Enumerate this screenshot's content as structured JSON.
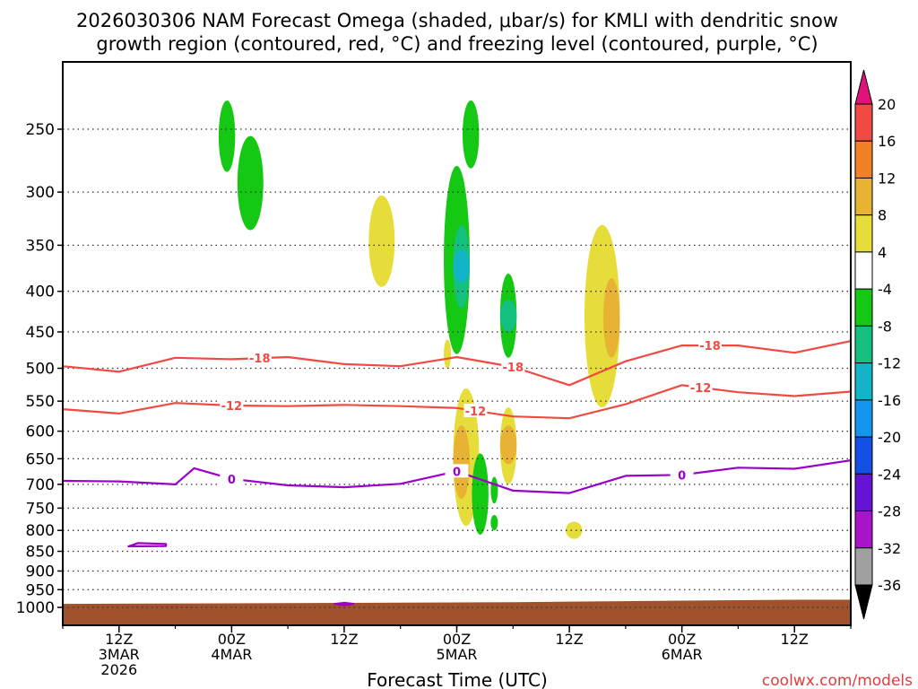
{
  "title_line1": "2026030306 NAM Forecast Omega (shaded, μbar/s) for KMLI with dendritic snow",
  "title_line2": "growth region (contoured, red, °C) and freezing level (contoured, purple, °C)",
  "xlabel": "Forecast Time (UTC)",
  "credit": "coolwx.com/models",
  "colors": {
    "frame": "#000000",
    "grid": "#333333",
    "red_contour": "#f04a43",
    "purple_contour": "#9a00c8",
    "ground": "#a0522d"
  },
  "chart_data": {
    "type": "heatmap",
    "y_axis": {
      "quantity": "pressure (hPa)",
      "scale": "log",
      "inverted": true,
      "range": [
        200,
        1050
      ],
      "ticks": [
        250,
        300,
        350,
        400,
        450,
        500,
        550,
        600,
        650,
        700,
        750,
        800,
        850,
        900,
        950,
        1000
      ]
    },
    "x_axis": {
      "quantity": "forecast time (UTC)",
      "range": [
        "2026-03-03 06Z",
        "2026-03-06 18Z"
      ],
      "ticks": [
        {
          "time": "2026-03-03 12Z",
          "lines": [
            "12Z",
            "3MAR",
            "2026"
          ]
        },
        {
          "time": "2026-03-04 00Z",
          "lines": [
            "00Z",
            "4MAR"
          ]
        },
        {
          "time": "2026-03-04 12Z",
          "lines": [
            "12Z"
          ]
        },
        {
          "time": "2026-03-05 00Z",
          "lines": [
            "00Z",
            "5MAR"
          ]
        },
        {
          "time": "2026-03-05 12Z",
          "lines": [
            "12Z"
          ]
        },
        {
          "time": "2026-03-06 00Z",
          "lines": [
            "00Z",
            "6MAR"
          ]
        },
        {
          "time": "2026-03-06 12Z",
          "lines": [
            "12Z"
          ]
        }
      ]
    },
    "grid": true,
    "colorbar": {
      "placement": "right",
      "tick_labels": [
        "20",
        "16",
        "12",
        "8",
        "4",
        "-4",
        "-8",
        "-12",
        "-16",
        "-20",
        "-24",
        "-28",
        "-32",
        "-36"
      ],
      "bins": [
        {
          "range": [
            20,
            null
          ],
          "color": "#e0137a"
        },
        {
          "range": [
            16,
            20
          ],
          "color": "#f04a43"
        },
        {
          "range": [
            12,
            16
          ],
          "color": "#f08225"
        },
        {
          "range": [
            8,
            12
          ],
          "color": "#e8b235"
        },
        {
          "range": [
            4,
            8
          ],
          "color": "#e6dc3a"
        },
        {
          "range": [
            -4,
            4
          ],
          "color": "#ffffff"
        },
        {
          "range": [
            -8,
            -4
          ],
          "color": "#14c814"
        },
        {
          "range": [
            -12,
            -8
          ],
          "color": "#14c080"
        },
        {
          "range": [
            -16,
            -12
          ],
          "color": "#14b4c8"
        },
        {
          "range": [
            -20,
            -16
          ],
          "color": "#1496f0"
        },
        {
          "range": [
            -24,
            -20
          ],
          "color": "#1450e6"
        },
        {
          "range": [
            -28,
            -24
          ],
          "color": "#6414d2"
        },
        {
          "range": [
            -32,
            -28
          ],
          "color": "#aa14c8"
        },
        {
          "range": [
            -36,
            -32
          ],
          "color": "#a0a0a0"
        },
        {
          "range": [
            null,
            -36
          ],
          "color": "#000000"
        }
      ]
    },
    "contours": [
      {
        "label": "-18",
        "kind": "dendritic growth",
        "color": "#f04a43",
        "points": [
          [
            "2026-03-03 06Z",
            497
          ],
          [
            "2026-03-03 12Z",
            505
          ],
          [
            "2026-03-03 18Z",
            485
          ],
          [
            "2026-03-04 00Z",
            487
          ],
          [
            "2026-03-04 06Z",
            484
          ],
          [
            "2026-03-04 12Z",
            494
          ],
          [
            "2026-03-04 18Z",
            497
          ],
          [
            "2026-03-05 00Z",
            484
          ],
          [
            "2026-03-05 06Z",
            498
          ],
          [
            "2026-03-05 12Z",
            525
          ],
          [
            "2026-03-05 18Z",
            490
          ],
          [
            "2026-03-06 00Z",
            468
          ],
          [
            "2026-03-06 06Z",
            468
          ],
          [
            "2026-03-06 12Z",
            478
          ],
          [
            "2026-03-06 18Z",
            462
          ]
        ],
        "labels_at": [
          "2026-03-04 03Z",
          "2026-03-05 06Z",
          "2026-03-06 03Z"
        ]
      },
      {
        "label": "-12",
        "kind": "dendritic growth",
        "color": "#f04a43",
        "points": [
          [
            "2026-03-03 06Z",
            563
          ],
          [
            "2026-03-03 12Z",
            570
          ],
          [
            "2026-03-03 18Z",
            553
          ],
          [
            "2026-03-04 00Z",
            557
          ],
          [
            "2026-03-04 06Z",
            558
          ],
          [
            "2026-03-04 12Z",
            556
          ],
          [
            "2026-03-04 18Z",
            558
          ],
          [
            "2026-03-05 00Z",
            561
          ],
          [
            "2026-03-05 06Z",
            575
          ],
          [
            "2026-03-05 12Z",
            578
          ],
          [
            "2026-03-05 18Z",
            555
          ],
          [
            "2026-03-06 00Z",
            525
          ],
          [
            "2026-03-06 06Z",
            536
          ],
          [
            "2026-03-06 12Z",
            542
          ],
          [
            "2026-03-06 18Z",
            535
          ]
        ],
        "labels_at": [
          "2026-03-04 00Z",
          "2026-03-05 02Z",
          "2026-03-06 02Z"
        ]
      },
      {
        "label": "0",
        "kind": "freezing level",
        "color": "#9a00c8",
        "points": [
          [
            "2026-03-03 06Z",
            693
          ],
          [
            "2026-03-03 12Z",
            694
          ],
          [
            "2026-03-03 18Z",
            700
          ],
          [
            "2026-03-03 20Z",
            668
          ],
          [
            "2026-03-04 00Z",
            689
          ],
          [
            "2026-03-04 06Z",
            702
          ],
          [
            "2026-03-04 12Z",
            706
          ],
          [
            "2026-03-04 18Z",
            699
          ],
          [
            "2026-03-05 00Z",
            674
          ],
          [
            "2026-03-05 06Z",
            713
          ],
          [
            "2026-03-05 12Z",
            718
          ],
          [
            "2026-03-05 18Z",
            683
          ],
          [
            "2026-03-06 00Z",
            681
          ],
          [
            "2026-03-06 06Z",
            667
          ],
          [
            "2026-03-06 12Z",
            669
          ],
          [
            "2026-03-06 18Z",
            653
          ]
        ],
        "labels_at": [
          "2026-03-04 00Z",
          "2026-03-05 00Z",
          "2026-03-06 00Z"
        ]
      },
      {
        "label": "",
        "kind": "freezing level",
        "color": "#9a00c8",
        "closed": true,
        "points": [
          [
            "2026-03-03 17Z",
            832
          ],
          [
            "2026-03-03 14Z",
            830
          ],
          [
            "2026-03-03 13Z",
            838
          ],
          [
            "2026-03-03 17Z",
            837
          ]
        ]
      },
      {
        "label": "",
        "kind": "freezing level",
        "color": "#9a00c8",
        "closed": true,
        "points": [
          [
            "2026-03-04 12Z",
            987
          ],
          [
            "2026-03-04 11Z",
            990
          ],
          [
            "2026-03-04 12Z",
            994
          ],
          [
            "2026-03-04 13Z",
            990
          ]
        ]
      }
    ],
    "omega_regions": [
      {
        "time_range": [
          "2026-03-04 01Z",
          "2026-03-04 03Z"
        ],
        "p_range": [
          255,
          335
        ],
        "value": -5,
        "center": [
          "2026-03-04 02Z",
          300
        ]
      },
      {
        "time_range": [
          "2026-03-03 23Z",
          "2026-03-04 00Z"
        ],
        "p_range": [
          230,
          283
        ],
        "value": -5,
        "center": [
          "2026-03-03 23Z",
          257
        ]
      },
      {
        "time_range": [
          "2026-03-04 15Z",
          "2026-03-04 17Z"
        ],
        "p_range": [
          303,
          395
        ],
        "value": 5,
        "center": [
          "2026-03-04 16Z",
          350
        ]
      },
      {
        "time_range": [
          "2026-03-04 23Z",
          "2026-03-05 01Z"
        ],
        "p_range": [
          278,
          480
        ],
        "value": -7,
        "center": [
          "2026-03-05 00Z",
          380
        ]
      },
      {
        "time_range": [
          "2026-03-05 00Z",
          "2026-03-05 01Z"
        ],
        "p_range": [
          330,
          420
        ],
        "value": -10,
        "center": [
          "2026-03-05 00Z",
          375
        ]
      },
      {
        "time_range": [
          "2026-03-05 00Z",
          "2026-03-05 01Z"
        ],
        "p_range": [
          355,
          390
        ],
        "value": -13,
        "center": [
          "2026-03-05 00Z",
          372
        ]
      },
      {
        "time_range": [
          "2026-03-05 01Z",
          "2026-03-05 02Z"
        ],
        "p_range": [
          230,
          280
        ],
        "value": -5,
        "center": [
          "2026-03-05 01Z",
          255
        ]
      },
      {
        "time_range": [
          "2026-03-05 05Z",
          "2026-03-05 06Z"
        ],
        "p_range": [
          380,
          485
        ],
        "value": -6,
        "center": [
          "2026-03-05 05Z",
          433
        ]
      },
      {
        "time_range": [
          "2026-03-05 05Z",
          "2026-03-05 06Z"
        ],
        "p_range": [
          410,
          450
        ],
        "value": -9,
        "center": [
          "2026-03-05 05Z",
          430
        ]
      },
      {
        "time_range": [
          "2026-03-05 14Z",
          "2026-03-05 17Z"
        ],
        "p_range": [
          330,
          560
        ],
        "value": 5,
        "center": [
          "2026-03-05 16Z",
          430
        ]
      },
      {
        "time_range": [
          "2026-03-05 16Z",
          "2026-03-05 17Z"
        ],
        "p_range": [
          385,
          485
        ],
        "value": 9,
        "center": [
          "2026-03-05 16Z",
          430
        ]
      },
      {
        "time_range": [
          "2026-03-05 00Z",
          "2026-03-05 02Z"
        ],
        "p_range": [
          530,
          790
        ],
        "value": 5,
        "center": [
          "2026-03-05 01Z",
          650
        ]
      },
      {
        "time_range": [
          "2026-03-05 00Z",
          "2026-03-05 01Z"
        ],
        "p_range": [
          590,
          730
        ],
        "value": 10,
        "center": [
          "2026-03-05 01Z",
          655
        ]
      },
      {
        "time_range": [
          "2026-03-05 05Z",
          "2026-03-05 06Z"
        ],
        "p_range": [
          560,
          700
        ],
        "value": 5,
        "center": [
          "2026-03-05 05Z",
          625
        ]
      },
      {
        "time_range": [
          "2026-03-05 05Z",
          "2026-03-05 06Z"
        ],
        "p_range": [
          590,
          660
        ],
        "value": 9,
        "center": [
          "2026-03-05 05Z",
          625
        ]
      },
      {
        "time_range": [
          "2026-03-05 02Z",
          "2026-03-05 03Z"
        ],
        "p_range": [
          640,
          810
        ],
        "value": -5,
        "center": [
          "2026-03-05 02Z",
          720
        ]
      },
      {
        "time_range": [
          "2026-03-05 04Z",
          "2026-03-05 04Z"
        ],
        "p_range": [
          765,
          800
        ],
        "value": -5,
        "center": [
          "2026-03-05 04Z",
          780
        ]
      },
      {
        "time_range": [
          "2026-03-05 04Z",
          "2026-03-05 04Z"
        ],
        "p_range": [
          685,
          740
        ],
        "value": -5,
        "center": [
          "2026-03-05 04Z",
          710
        ]
      },
      {
        "time_range": [
          "2026-03-05 12Z",
          "2026-03-05 13Z"
        ],
        "p_range": [
          780,
          820
        ],
        "value": 5,
        "center": [
          "2026-03-05 12Z",
          800
        ]
      },
      {
        "time_range": [
          "2026-03-04 23Z",
          "2026-03-04 23Z"
        ],
        "p_range": [
          460,
          500
        ],
        "value": 5,
        "center": [
          "2026-03-04 23Z",
          478
        ]
      }
    ],
    "ground": {
      "color": "#a0522d",
      "surface_pressure": [
        [
          "2026-03-03 06Z",
          990
        ],
        [
          "2026-03-04 12Z",
          987
        ],
        [
          "2026-03-05 06Z",
          985
        ],
        [
          "2026-03-06 12Z",
          978
        ],
        [
          "2026-03-06 18Z",
          978
        ]
      ]
    }
  }
}
